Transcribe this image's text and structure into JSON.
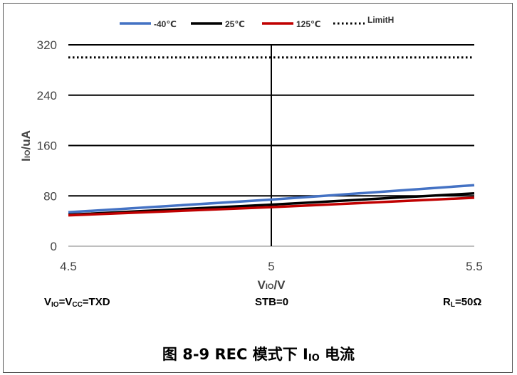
{
  "chart_data": {
    "type": "line",
    "x": [
      4.5,
      5,
      5.5
    ],
    "series": [
      {
        "name": "-40℃",
        "color": "#4472C4",
        "dash": false,
        "values": [
          54,
          74,
          97
        ]
      },
      {
        "name": "25℃",
        "color": "#000000",
        "dash": false,
        "values": [
          50,
          66,
          84
        ]
      },
      {
        "name": "125℃",
        "color": "#C00000",
        "dash": false,
        "values": [
          49,
          62,
          77
        ]
      },
      {
        "name": "LimitH",
        "color": "#000000",
        "dash": true,
        "values": [
          300,
          300,
          300
        ]
      }
    ],
    "xlabel": "VIO/V",
    "ylabel": "IIO/uA",
    "xlim": [
      4.5,
      5.5
    ],
    "ylim": [
      0,
      320
    ],
    "xticks": [
      "4.5",
      "5",
      "5.5"
    ],
    "yticks": [
      "0",
      "80",
      "160",
      "240",
      "320"
    ],
    "grid": true,
    "legend_position": "top"
  },
  "conditions": {
    "left_main": "V",
    "left_sub": "IO",
    "left_eq": "=V",
    "left_sub2": "CC",
    "left_tail": "=TXD",
    "center": "STB=0",
    "right_main": "R",
    "right_sub": "L",
    "right_tail": "=50Ω"
  },
  "caption": {
    "prefix": "图 8-9 REC 模式下 I",
    "sub": "IO",
    "suffix": " 电流"
  }
}
